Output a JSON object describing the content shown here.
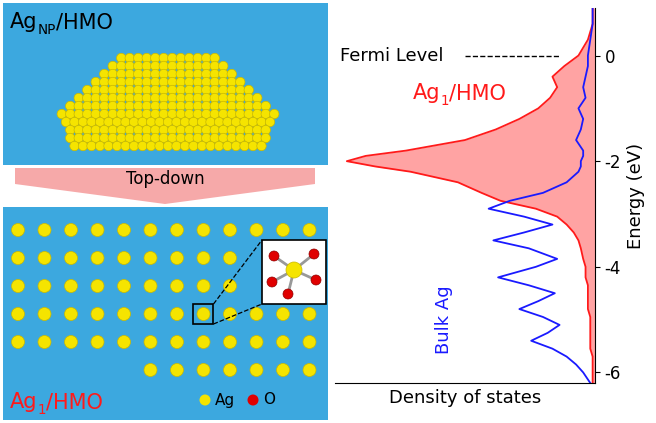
{
  "diagram": {
    "nanoparticle_panel": {
      "label_parts": [
        "Ag",
        "NP",
        "/HMO"
      ]
    },
    "arrow": {
      "label": "Top-down"
    },
    "single_atom_panel": {
      "label_parts": [
        "Ag",
        "1",
        "/HMO"
      ],
      "legend": [
        {
          "label": "Ag",
          "color": "#f5e400"
        },
        {
          "label": "O",
          "color": "#e00000"
        }
      ]
    }
  },
  "chart_data": {
    "type": "line",
    "orientation": "horizontal",
    "x_label": "Density of states",
    "y_label": "Energy (eV)",
    "fermi_level": {
      "label": "Fermi Level",
      "energy": 0
    },
    "xlim": [
      1.1,
      0
    ],
    "ylim": [
      -6.2,
      0.9
    ],
    "yticks": [
      0,
      -2,
      -4,
      -6
    ],
    "tick_labels": "y",
    "energy": [
      0.9,
      0.6,
      0.3,
      0.0,
      -0.2,
      -0.4,
      -0.6,
      -0.8,
      -1.0,
      -1.2,
      -1.4,
      -1.6,
      -1.8,
      -1.9,
      -2.0,
      -2.1,
      -2.2,
      -2.4,
      -2.6,
      -2.75,
      -2.9,
      -3.05,
      -3.2,
      -3.35,
      -3.5,
      -3.65,
      -3.85,
      -4.0,
      -4.2,
      -4.35,
      -4.5,
      -4.65,
      -4.8,
      -4.95,
      -5.1,
      -5.25,
      -5.4,
      -5.55,
      -5.7,
      -5.85,
      -6.0,
      -6.2
    ],
    "series": [
      {
        "name_parts": [
          "Ag",
          "1",
          "/HMO"
        ],
        "type": "area",
        "color": "#ff1a1a",
        "values": [
          0.01,
          0.01,
          0.03,
          0.07,
          0.13,
          0.18,
          0.16,
          0.19,
          0.24,
          0.32,
          0.42,
          0.55,
          0.8,
          0.97,
          1.05,
          0.93,
          0.78,
          0.58,
          0.48,
          0.4,
          0.25,
          0.16,
          0.12,
          0.09,
          0.07,
          0.06,
          0.05,
          0.04,
          0.04,
          0.03,
          0.03,
          0.03,
          0.03,
          0.02,
          0.02,
          0.02,
          0.02,
          0.02,
          0.01,
          0.01,
          0.01,
          0.01
        ]
      },
      {
        "name_parts": [
          "Bulk Ag"
        ],
        "type": "line",
        "color": "#1a1aff",
        "values": [
          0.01,
          0.01,
          0.02,
          0.03,
          0.03,
          0.04,
          0.05,
          0.04,
          0.07,
          0.05,
          0.06,
          0.08,
          0.05,
          0.05,
          0.06,
          0.06,
          0.07,
          0.12,
          0.22,
          0.36,
          0.45,
          0.3,
          0.18,
          0.3,
          0.43,
          0.28,
          0.16,
          0.25,
          0.41,
          0.28,
          0.17,
          0.24,
          0.32,
          0.22,
          0.15,
          0.2,
          0.27,
          0.18,
          0.12,
          0.08,
          0.05,
          0.02
        ]
      }
    ]
  }
}
